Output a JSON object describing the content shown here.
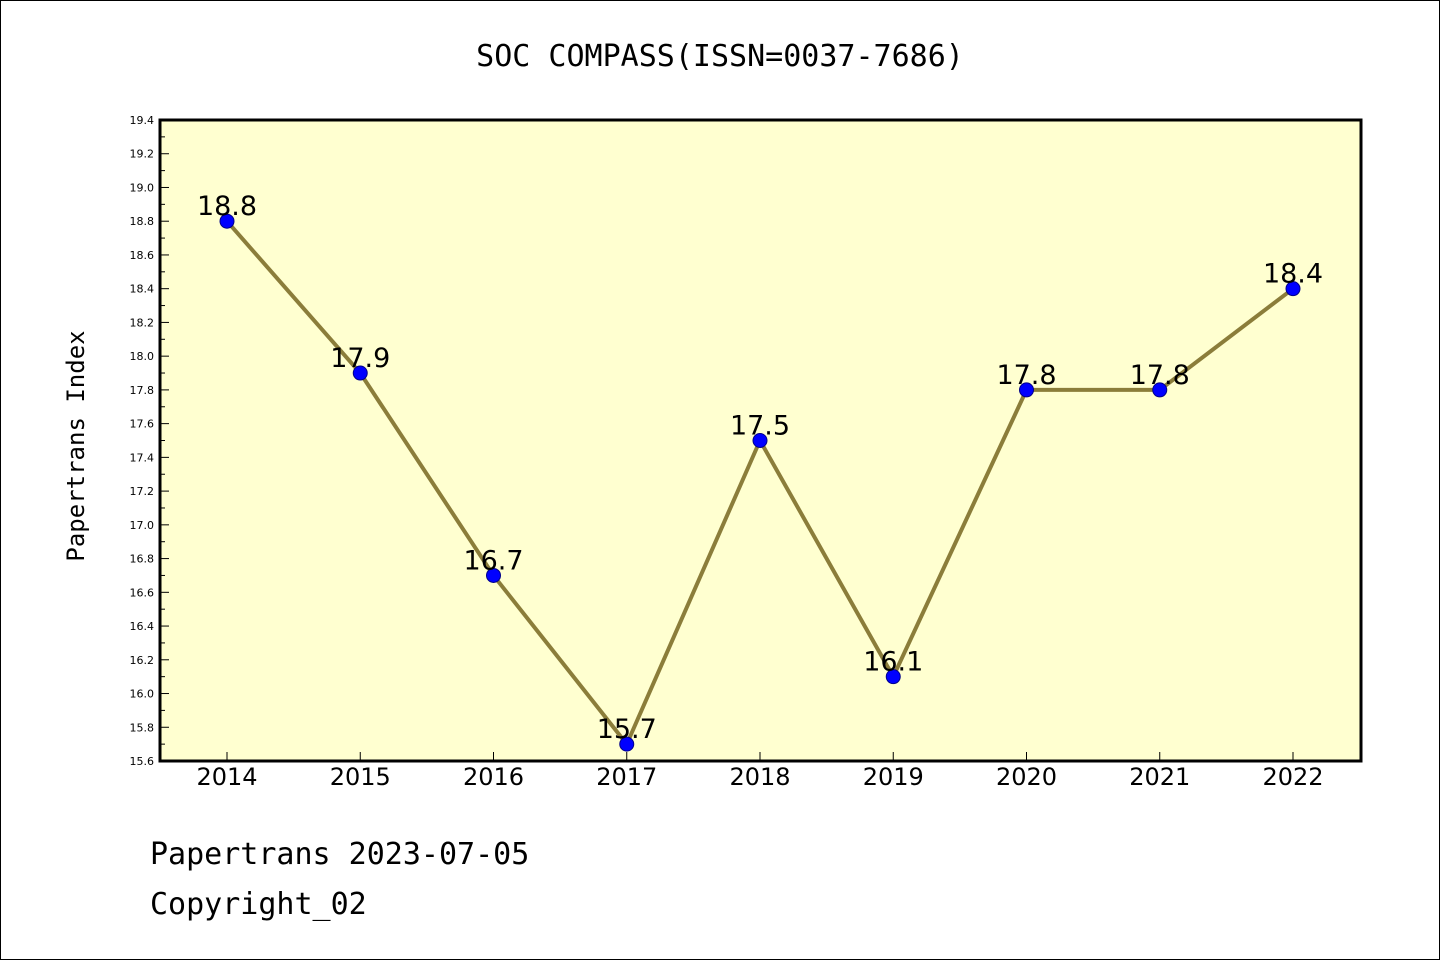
{
  "chart_data": {
    "type": "line",
    "title": "SOC COMPASS(ISSN=0037-7686)",
    "xlabel": "",
    "ylabel": "Papertrans Index",
    "categories": [
      "2014",
      "2015",
      "2016",
      "2017",
      "2018",
      "2019",
      "2020",
      "2021",
      "2022"
    ],
    "values": [
      18.8,
      17.9,
      16.7,
      15.7,
      17.5,
      16.1,
      17.8,
      17.8,
      18.4
    ],
    "data_labels": [
      "18.8",
      "17.9",
      "16.7",
      "15.7",
      "17.5",
      "16.1",
      "17.8",
      "17.8",
      "18.4"
    ],
    "ylim": [
      15.6,
      19.4
    ],
    "yticks": [
      "15.6",
      "15.8",
      "16.0",
      "16.2",
      "16.4",
      "16.6",
      "16.8",
      "17.0",
      "17.2",
      "17.4",
      "17.6",
      "17.8",
      "18.0",
      "18.2",
      "18.4",
      "18.6",
      "18.8",
      "19.0",
      "19.2",
      "19.4"
    ],
    "grid": false,
    "legend": "none",
    "colors": {
      "plot_background": "#ffffd0",
      "line": "#8b7d3a",
      "marker": "#0000ff",
      "marker_edge": "#00008b"
    }
  },
  "footer": {
    "line1": "Papertrans 2023-07-05",
    "line2": "Copyright_02"
  }
}
